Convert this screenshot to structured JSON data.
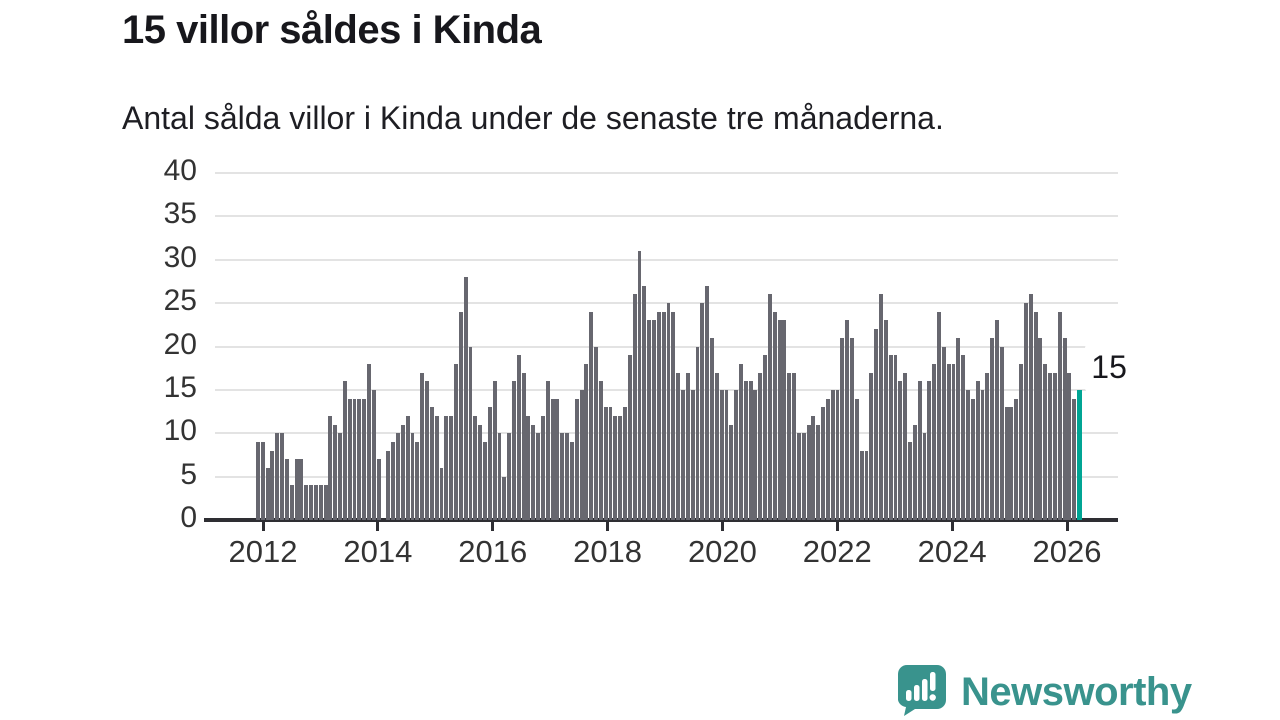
{
  "header": {
    "title": "15 villor såldes i Kinda",
    "subtitle": "Antal sålda villor i Kinda under de senaste tre månaderna."
  },
  "annotation": {
    "label": "15"
  },
  "branding": {
    "name": "Newsworthy",
    "icon": "newsworthy-speech-bubble-chart-icon",
    "color": "#39938D"
  },
  "colors": {
    "bar": "#67676F",
    "highlight": "#00A594",
    "grid": "#E3E3E3",
    "axis": "#2E2E33",
    "label": "#333333"
  },
  "chart_data": {
    "type": "bar",
    "title": "15 villor såldes i Kinda",
    "subtitle": "Antal sålda villor i Kinda under de senaste tre månaderna.",
    "xlabel": "",
    "ylabel": "",
    "x_start": "2011-12",
    "x_end": "2026-02",
    "x_frequency": "monthly",
    "x_tick_labels": [
      "2012",
      "2014",
      "2016",
      "2018",
      "2020",
      "2022",
      "2024",
      "2026"
    ],
    "y_ticks": [
      0,
      5,
      10,
      15,
      20,
      25,
      30,
      35,
      40
    ],
    "ylim": [
      0,
      40
    ],
    "grid": true,
    "legend_position": "none",
    "highlight_last_value": 15,
    "values": [
      9,
      9,
      6,
      8,
      10,
      10,
      7,
      4,
      7,
      7,
      4,
      4,
      4,
      4,
      4,
      12,
      11,
      10,
      16,
      14,
      14,
      14,
      14,
      18,
      15,
      7,
      0,
      8,
      9,
      10,
      11,
      12,
      10,
      9,
      17,
      16,
      13,
      12,
      6,
      12,
      12,
      18,
      24,
      28,
      20,
      12,
      11,
      9,
      13,
      16,
      10,
      5,
      10,
      16,
      19,
      17,
      12,
      11,
      10,
      12,
      16,
      14,
      14,
      10,
      10,
      9,
      14,
      15,
      18,
      24,
      20,
      16,
      13,
      13,
      12,
      12,
      13,
      19,
      26,
      31,
      27,
      23,
      23,
      24,
      24,
      25,
      24,
      17,
      15,
      17,
      15,
      20,
      25,
      27,
      21,
      17,
      15,
      15,
      11,
      15,
      18,
      16,
      16,
      15,
      17,
      19,
      26,
      24,
      23,
      23,
      17,
      17,
      10,
      10,
      11,
      12,
      11,
      13,
      14,
      15,
      15,
      21,
      23,
      21,
      14,
      8,
      8,
      17,
      22,
      26,
      23,
      19,
      19,
      16,
      17,
      9,
      11,
      16,
      10,
      16,
      18,
      24,
      20,
      18,
      18,
      21,
      19,
      15,
      14,
      16,
      15,
      17,
      21,
      23,
      20,
      13,
      13,
      14,
      18,
      25,
      26,
      24,
      21,
      18,
      17,
      17,
      24,
      21,
      17,
      14,
      15
    ]
  }
}
